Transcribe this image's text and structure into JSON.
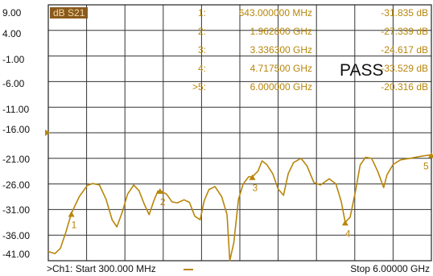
{
  "chart_data": {
    "type": "line",
    "trace_label": "dB S21",
    "y_ticks": [
      "9.00",
      "4.00",
      "-1.00",
      "-6.00",
      "-11.00",
      "-16.00",
      "-21.00",
      "-26.00",
      "-31.00",
      "-36.00",
      "-41.00"
    ],
    "ylim": [
      -41,
      9
    ],
    "xlim": [
      300,
      6000
    ],
    "x_unit": "MHz",
    "grid": true,
    "line_color": "#b8860b",
    "points": [
      [
        300,
        -39.2
      ],
      [
        400,
        -39.6
      ],
      [
        480,
        -38.6
      ],
      [
        560,
        -35.5
      ],
      [
        643,
        -31.8
      ],
      [
        760,
        -28.5
      ],
      [
        880,
        -26.3
      ],
      [
        960,
        -25.9
      ],
      [
        1060,
        -26.2
      ],
      [
        1160,
        -29.0
      ],
      [
        1250,
        -33.0
      ],
      [
        1320,
        -34.4
      ],
      [
        1400,
        -31.5
      ],
      [
        1480,
        -28.0
      ],
      [
        1570,
        -26.2
      ],
      [
        1650,
        -27.3
      ],
      [
        1730,
        -30.0
      ],
      [
        1800,
        -32.0
      ],
      [
        1870,
        -29.3
      ],
      [
        1930,
        -27.4
      ],
      [
        1962.8,
        -27.3
      ],
      [
        2060,
        -28.0
      ],
      [
        2140,
        -29.5
      ],
      [
        2220,
        -29.7
      ],
      [
        2320,
        -29.1
      ],
      [
        2400,
        -29.6
      ],
      [
        2480,
        -32.3
      ],
      [
        2560,
        -33.0
      ],
      [
        2620,
        -29.3
      ],
      [
        2690,
        -27.1
      ],
      [
        2780,
        -26.5
      ],
      [
        2880,
        -28.5
      ],
      [
        2960,
        -32.0
      ],
      [
        3000,
        -41.0
      ],
      [
        3060,
        -37.5
      ],
      [
        3130,
        -29.0
      ],
      [
        3200,
        -26.0
      ],
      [
        3280,
        -24.6
      ],
      [
        3336.3,
        -24.6
      ],
      [
        3420,
        -23.5
      ],
      [
        3480,
        -21.5
      ],
      [
        3550,
        -22.2
      ],
      [
        3640,
        -24.0
      ],
      [
        3720,
        -27.0
      ],
      [
        3800,
        -28.2
      ],
      [
        3870,
        -24.0
      ],
      [
        3950,
        -21.8
      ],
      [
        4060,
        -21.0
      ],
      [
        4150,
        -22.5
      ],
      [
        4250,
        -25.7
      ],
      [
        4350,
        -26.2
      ],
      [
        4480,
        -25.0
      ],
      [
        4580,
        -26.0
      ],
      [
        4660,
        -29.5
      ],
      [
        4717.5,
        -33.5
      ],
      [
        4790,
        -32.5
      ],
      [
        4870,
        -27.5
      ],
      [
        4940,
        -22.3
      ],
      [
        5020,
        -20.8
      ],
      [
        5110,
        -21.0
      ],
      [
        5200,
        -23.5
      ],
      [
        5290,
        -26.7
      ],
      [
        5340,
        -24.2
      ],
      [
        5430,
        -22.2
      ],
      [
        5540,
        -21.3
      ],
      [
        5680,
        -21.0
      ],
      [
        5840,
        -20.6
      ],
      [
        6000,
        -20.3
      ]
    ],
    "markers": [
      {
        "num": "1:",
        "freq": "643.000000 MHz",
        "val": "-31.835 dB",
        "x": 643,
        "y": -31.8,
        "label": "1"
      },
      {
        "num": "2:",
        "freq": "1.962800 GHz",
        "val": "-27.339 dB",
        "x": 1962.8,
        "y": -27.3,
        "label": "2"
      },
      {
        "num": "3:",
        "freq": "3.336300 GHz",
        "val": "-24.617 dB",
        "x": 3336.3,
        "y": -24.6,
        "label": "3"
      },
      {
        "num": "4:",
        "freq": "4.717500 GHz",
        "val": "-33.529 dB",
        "x": 4717.5,
        "y": -33.5,
        "label": "4"
      },
      {
        "num": ">5:",
        "freq": "6.000000 GHz",
        "val": "-20.316 dB",
        "x": 6000,
        "y": -20.3,
        "label": "5"
      }
    ],
    "reference_level": -16
  },
  "status": {
    "pass_text": "PASS"
  },
  "footer": {
    "start": ">Ch1: Start  300.000 MHz",
    "stop": "Stop  6.00000 GHz"
  }
}
